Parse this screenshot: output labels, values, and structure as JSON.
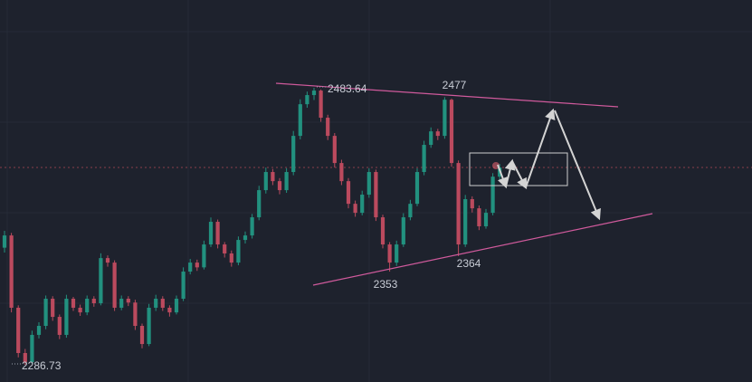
{
  "chart_data": {
    "type": "candlestick",
    "up_color": "#22917f",
    "down_color": "#bb4a5e",
    "ylim": [
      2274.5,
      2546.1
    ],
    "open": [
      2370.0,
      2378.7,
      2327.3,
      2295.1,
      2288.6,
      2308.0,
      2314.4,
      2333.7,
      2320.8,
      2308.0,
      2333.7,
      2327.3,
      2324.0,
      2333.7,
      2330.5,
      2362.6,
      2359.4,
      2327.3,
      2333.7,
      2331.0,
      2314.4,
      2301.5,
      2327.3,
      2333.7,
      2327.3,
      2324.0,
      2333.7,
      2353.0,
      2359.4,
      2356.0,
      2372.3,
      2388.4,
      2372.3,
      2365.9,
      2359.4,
      2375.5,
      2378.7,
      2391.6,
      2410.9,
      2423.8,
      2417.3,
      2410.9,
      2423.8,
      2449.5,
      2472.0,
      2478.5,
      2481.7,
      2462.4,
      2449.5,
      2430.2,
      2417.3,
      2401.2,
      2394.8,
      2407.7,
      2423.8,
      2391.6,
      2372.3,
      2359.4,
      2372.3,
      2391.6,
      2401.2,
      2423.8,
      2443.1,
      2452.7,
      2449.5,
      2475.2,
      2430.2,
      2372.3,
      2404.5,
      2398.0,
      2385.2,
      2394.8,
      2420.5
    ],
    "high": [
      2382.0,
      2380.5,
      2329.0,
      2298.0,
      2311.0,
      2317.0,
      2336.0,
      2335.5,
      2322.5,
      2336.5,
      2335.0,
      2329.5,
      2336.0,
      2335.5,
      2366.0,
      2364.5,
      2361.0,
      2336.0,
      2335.5,
      2333.0,
      2316.0,
      2330.0,
      2336.5,
      2335.5,
      2329.0,
      2336.0,
      2356.0,
      2362.0,
      2361.5,
      2375.0,
      2391.5,
      2390.0,
      2374.0,
      2368.0,
      2378.0,
      2381.5,
      2394.0,
      2414.0,
      2427.0,
      2426.0,
      2419.5,
      2426.5,
      2453.0,
      2475.5,
      2481.0,
      2483.64,
      2482.5,
      2464.5,
      2451.5,
      2432.5,
      2419.5,
      2403.5,
      2410.5,
      2426.5,
      2425.5,
      2393.5,
      2374.0,
      2375.0,
      2394.5,
      2404.0,
      2426.5,
      2446.0,
      2455.5,
      2454.5,
      2477.0,
      2476.0,
      2432.0,
      2407.5,
      2406.5,
      2400.0,
      2397.5,
      2423.0,
      2429.5
    ],
    "low": [
      2366.5,
      2324.0,
      2292.0,
      2286.73,
      2287.5,
      2305.5,
      2312.0,
      2318.0,
      2305.0,
      2306.0,
      2325.0,
      2321.5,
      2322.0,
      2328.0,
      2329.0,
      2356.5,
      2325.0,
      2325.5,
      2328.5,
      2311.5,
      2298.5,
      2300.0,
      2325.0,
      2325.0,
      2321.0,
      2322.5,
      2332.0,
      2351.0,
      2353.5,
      2354.5,
      2370.5,
      2369.5,
      2363.0,
      2356.5,
      2357.5,
      2373.0,
      2376.5,
      2389.5,
      2408.5,
      2414.5,
      2408.0,
      2409.0,
      2421.5,
      2447.0,
      2469.5,
      2475.0,
      2459.5,
      2446.5,
      2427.0,
      2414.5,
      2398.0,
      2392.0,
      2393.0,
      2405.5,
      2389.0,
      2369.5,
      2353.0,
      2357.0,
      2370.5,
      2389.5,
      2399.5,
      2421.5,
      2441.0,
      2446.5,
      2447.5,
      2427.5,
      2364.0,
      2370.5,
      2395.0,
      2382.5,
      2383.5,
      2393.0,
      2418.0
    ],
    "close": [
      2378.7,
      2327.3,
      2295.1,
      2288.6,
      2308.0,
      2314.4,
      2333.7,
      2320.8,
      2308.0,
      2333.7,
      2327.3,
      2324.0,
      2333.7,
      2330.5,
      2362.6,
      2359.4,
      2327.3,
      2333.7,
      2331.0,
      2314.4,
      2301.5,
      2327.3,
      2333.7,
      2327.3,
      2324.0,
      2333.7,
      2353.0,
      2359.4,
      2356.0,
      2372.3,
      2388.4,
      2372.3,
      2365.9,
      2359.4,
      2375.5,
      2378.7,
      2391.6,
      2410.9,
      2423.8,
      2417.3,
      2410.9,
      2423.8,
      2449.5,
      2472.0,
      2478.5,
      2481.7,
      2462.4,
      2449.5,
      2430.2,
      2417.3,
      2401.2,
      2394.8,
      2407.7,
      2423.8,
      2391.6,
      2372.3,
      2359.4,
      2372.3,
      2391.6,
      2401.2,
      2423.8,
      2443.1,
      2452.7,
      2449.5,
      2475.2,
      2430.2,
      2372.3,
      2404.5,
      2398.0,
      2385.2,
      2394.8,
      2420.5,
      2427.0
    ],
    "labels": [
      "2483.64",
      "2477",
      "2364",
      "2353",
      "2286.73"
    ]
  }
}
